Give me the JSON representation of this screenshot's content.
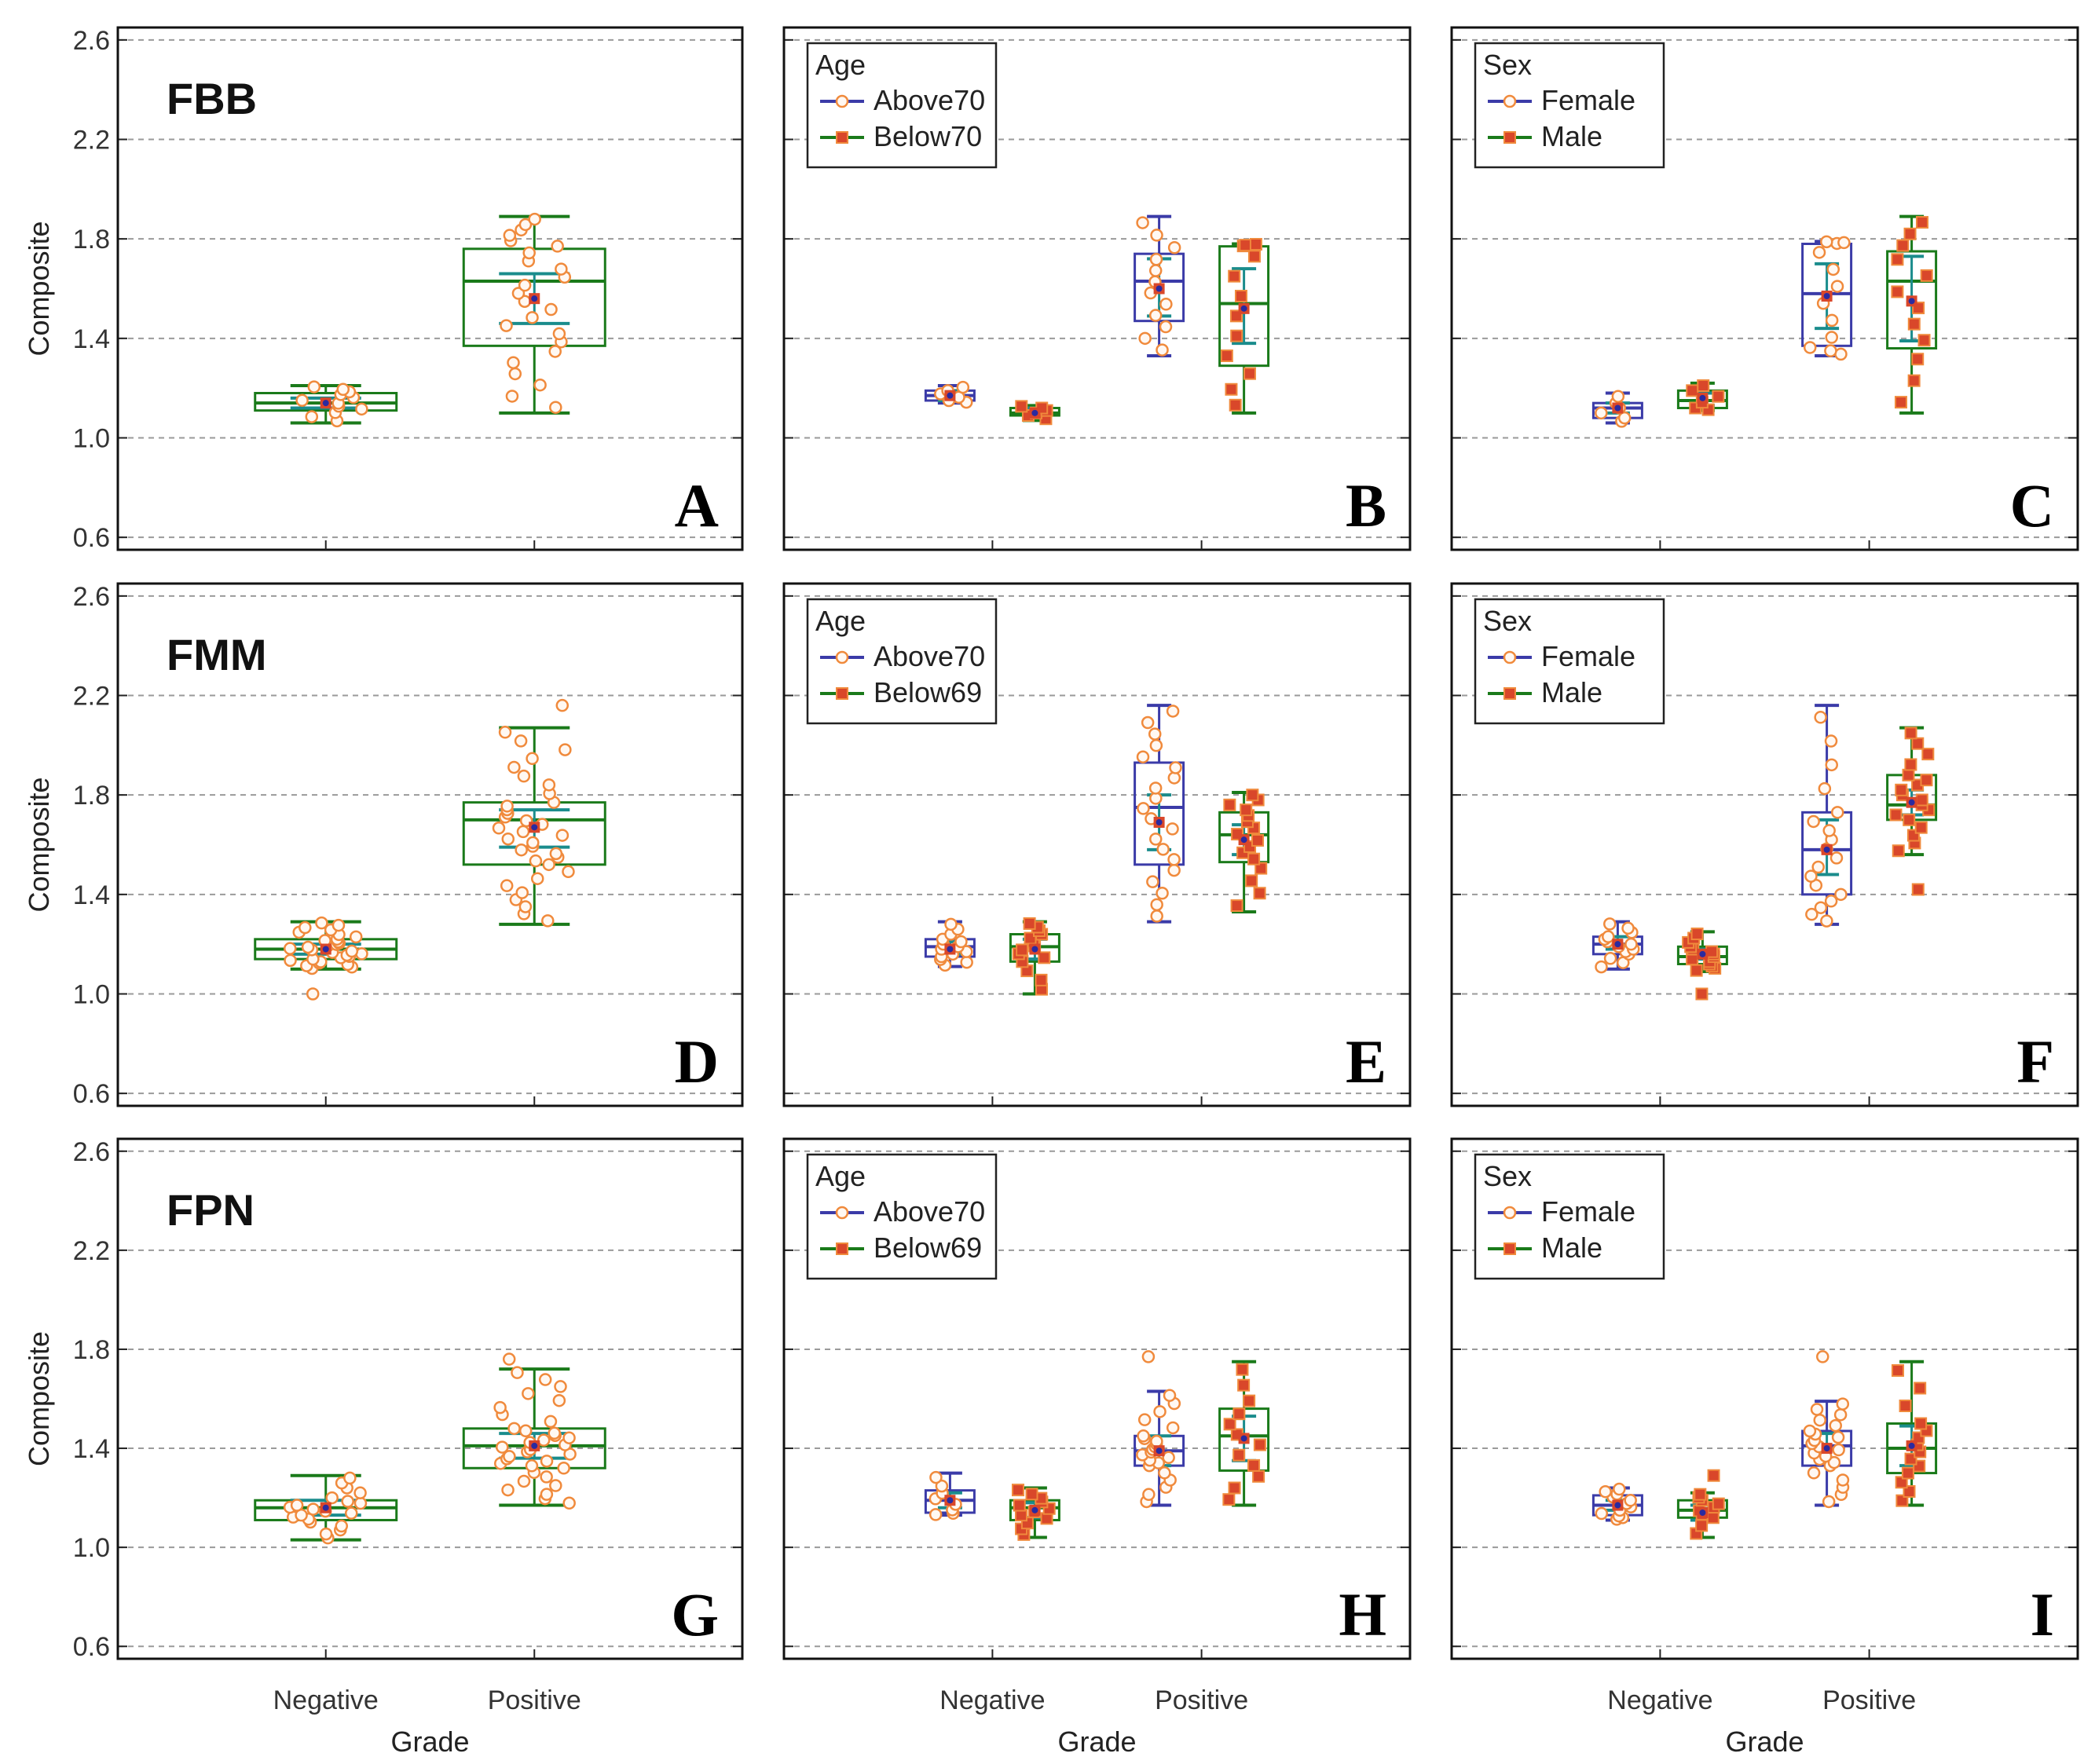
{
  "figure": {
    "y_axis_label": "Composite",
    "x_axis_label": "Grade",
    "categories": [
      "Negative",
      "Positive"
    ],
    "y_ticks": [
      "0.6",
      "1.0",
      "1.4",
      "1.8",
      "2.2",
      "2.6"
    ],
    "colors": {
      "blue_box": "#3b3ba8",
      "green_box": "#1a7a1a",
      "teal_ci": "#1a8c8c",
      "orange_point": "#f08a3c",
      "red_point": "#d9472a",
      "mean_marker": "#2a2aa0",
      "grid": "#9a9a9a"
    }
  },
  "chart_data": [
    {
      "panel": "A",
      "title": "FBB",
      "type": "box",
      "grouped": false,
      "ylim": [
        0.55,
        2.65
      ],
      "categories": [
        "Negative",
        "Positive"
      ],
      "boxes": [
        {
          "cat": 0,
          "style": "green",
          "wl": 1.06,
          "q1": 1.11,
          "med": 1.14,
          "q3": 1.18,
          "wh": 1.21,
          "mean": 1.14,
          "ci": [
            1.12,
            1.16
          ],
          "n": 12,
          "marker": "open"
        },
        {
          "cat": 1,
          "style": "green",
          "wl": 1.1,
          "q1": 1.37,
          "med": 1.63,
          "q3": 1.76,
          "wh": 1.89,
          "mean": 1.56,
          "ci": [
            1.46,
            1.66
          ],
          "n": 24,
          "marker": "open"
        }
      ]
    },
    {
      "panel": "B",
      "title": "",
      "type": "box",
      "grouped": true,
      "ylim": [
        0.55,
        2.65
      ],
      "categories": [
        "Negative",
        "Positive"
      ],
      "legend": {
        "title": "Age",
        "items": [
          "Above70",
          "Below70"
        ]
      },
      "boxes": [
        {
          "cat": 0,
          "group": 0,
          "style": "blue",
          "wl": 1.14,
          "q1": 1.15,
          "med": 1.17,
          "q3": 1.19,
          "wh": 1.21,
          "mean": 1.17,
          "ci": [
            1.15,
            1.19
          ],
          "n": 6,
          "marker": "open"
        },
        {
          "cat": 0,
          "group": 1,
          "style": "green",
          "wl": 1.07,
          "q1": 1.09,
          "med": 1.1,
          "q3": 1.12,
          "wh": 1.13,
          "mean": 1.1,
          "ci": [
            1.09,
            1.12
          ],
          "n": 6,
          "marker": "filled"
        },
        {
          "cat": 1,
          "group": 0,
          "style": "blue",
          "wl": 1.33,
          "q1": 1.47,
          "med": 1.63,
          "q3": 1.74,
          "wh": 1.89,
          "mean": 1.6,
          "ci": [
            1.49,
            1.72
          ],
          "n": 12,
          "marker": "open"
        },
        {
          "cat": 1,
          "group": 1,
          "style": "green",
          "wl": 1.1,
          "q1": 1.29,
          "med": 1.54,
          "q3": 1.77,
          "wh": 1.78,
          "mean": 1.52,
          "ci": [
            1.38,
            1.68
          ],
          "n": 12,
          "marker": "filled"
        }
      ]
    },
    {
      "panel": "C",
      "title": "",
      "type": "box",
      "grouped": true,
      "ylim": [
        0.55,
        2.65
      ],
      "categories": [
        "Negative",
        "Positive"
      ],
      "legend": {
        "title": "Sex",
        "items": [
          "Female",
          "Male"
        ]
      },
      "boxes": [
        {
          "cat": 0,
          "group": 0,
          "style": "blue",
          "wl": 1.06,
          "q1": 1.08,
          "med": 1.12,
          "q3": 1.14,
          "wh": 1.18,
          "mean": 1.12,
          "ci": [
            1.1,
            1.14
          ],
          "n": 6,
          "marker": "open"
        },
        {
          "cat": 0,
          "group": 1,
          "style": "green",
          "wl": 1.11,
          "q1": 1.12,
          "med": 1.15,
          "q3": 1.19,
          "wh": 1.22,
          "mean": 1.16,
          "ci": [
            1.13,
            1.18
          ],
          "n": 6,
          "marker": "filled"
        },
        {
          "cat": 1,
          "group": 0,
          "style": "blue",
          "wl": 1.33,
          "q1": 1.37,
          "med": 1.58,
          "q3": 1.78,
          "wh": 1.79,
          "mean": 1.57,
          "ci": [
            1.44,
            1.7
          ],
          "n": 12,
          "marker": "open"
        },
        {
          "cat": 1,
          "group": 1,
          "style": "green",
          "wl": 1.1,
          "q1": 1.36,
          "med": 1.63,
          "q3": 1.75,
          "wh": 1.89,
          "mean": 1.55,
          "ci": [
            1.39,
            1.73
          ],
          "n": 12,
          "marker": "filled"
        }
      ]
    },
    {
      "panel": "D",
      "title": "FMM",
      "type": "box",
      "grouped": false,
      "ylim": [
        0.55,
        2.65
      ],
      "categories": [
        "Negative",
        "Positive"
      ],
      "boxes": [
        {
          "cat": 0,
          "style": "green",
          "wl": 1.1,
          "q1": 1.14,
          "med": 1.18,
          "q3": 1.22,
          "wh": 1.29,
          "mean": 1.18,
          "ci": [
            1.16,
            1.2
          ],
          "n": 30,
          "marker": "open",
          "extra": [
            1.0
          ]
        },
        {
          "cat": 1,
          "style": "green",
          "wl": 1.28,
          "q1": 1.52,
          "med": 1.7,
          "q3": 1.77,
          "wh": 2.07,
          "mean": 1.67,
          "ci": [
            1.59,
            1.74
          ],
          "n": 34,
          "marker": "open",
          "extra": [
            2.16
          ]
        }
      ]
    },
    {
      "panel": "E",
      "title": "",
      "type": "box",
      "grouped": true,
      "ylim": [
        0.55,
        2.65
      ],
      "categories": [
        "Negative",
        "Positive"
      ],
      "legend": {
        "title": "Age",
        "items": [
          "Above70",
          "Below69"
        ]
      },
      "boxes": [
        {
          "cat": 0,
          "group": 0,
          "style": "blue",
          "wl": 1.11,
          "q1": 1.15,
          "med": 1.19,
          "q3": 1.22,
          "wh": 1.29,
          "mean": 1.18,
          "ci": [
            1.16,
            1.21
          ],
          "n": 14,
          "marker": "open"
        },
        {
          "cat": 0,
          "group": 1,
          "style": "green",
          "wl": 1.0,
          "q1": 1.13,
          "med": 1.19,
          "q3": 1.24,
          "wh": 1.29,
          "mean": 1.18,
          "ci": [
            1.14,
            1.22
          ],
          "n": 14,
          "marker": "filled"
        },
        {
          "cat": 1,
          "group": 0,
          "style": "blue",
          "wl": 1.29,
          "q1": 1.52,
          "med": 1.75,
          "q3": 1.93,
          "wh": 2.16,
          "mean": 1.69,
          "ci": [
            1.58,
            1.8
          ],
          "n": 20,
          "marker": "open"
        },
        {
          "cat": 1,
          "group": 1,
          "style": "green",
          "wl": 1.33,
          "q1": 1.53,
          "med": 1.64,
          "q3": 1.73,
          "wh": 1.81,
          "mean": 1.62,
          "ci": [
            1.56,
            1.68
          ],
          "n": 16,
          "marker": "filled"
        }
      ]
    },
    {
      "panel": "F",
      "title": "",
      "type": "box",
      "grouped": true,
      "ylim": [
        0.55,
        2.65
      ],
      "categories": [
        "Negative",
        "Positive"
      ],
      "legend": {
        "title": "Sex",
        "items": [
          "Female",
          "Male"
        ]
      },
      "boxes": [
        {
          "cat": 0,
          "group": 0,
          "style": "blue",
          "wl": 1.1,
          "q1": 1.16,
          "med": 1.2,
          "q3": 1.23,
          "wh": 1.29,
          "mean": 1.2,
          "ci": [
            1.18,
            1.23
          ],
          "n": 14,
          "marker": "open"
        },
        {
          "cat": 0,
          "group": 1,
          "style": "green",
          "wl": 1.09,
          "q1": 1.12,
          "med": 1.15,
          "q3": 1.19,
          "wh": 1.25,
          "mean": 1.16,
          "ci": [
            1.14,
            1.18
          ],
          "n": 14,
          "marker": "filled",
          "extra": [
            1.0
          ]
        },
        {
          "cat": 1,
          "group": 0,
          "style": "blue",
          "wl": 1.28,
          "q1": 1.4,
          "med": 1.58,
          "q3": 1.73,
          "wh": 2.16,
          "mean": 1.58,
          "ci": [
            1.48,
            1.7
          ],
          "n": 18,
          "marker": "open"
        },
        {
          "cat": 1,
          "group": 1,
          "style": "green",
          "wl": 1.56,
          "q1": 1.7,
          "med": 1.76,
          "q3": 1.88,
          "wh": 2.07,
          "mean": 1.77,
          "ci": [
            1.72,
            1.82
          ],
          "n": 18,
          "marker": "filled",
          "extra": [
            1.42
          ]
        }
      ]
    },
    {
      "panel": "G",
      "title": "FPN",
      "type": "box",
      "grouped": false,
      "ylim": [
        0.55,
        2.65
      ],
      "categories": [
        "Negative",
        "Positive"
      ],
      "boxes": [
        {
          "cat": 0,
          "style": "green",
          "wl": 1.03,
          "q1": 1.11,
          "med": 1.16,
          "q3": 1.19,
          "wh": 1.29,
          "mean": 1.16,
          "ci": [
            1.13,
            1.19
          ],
          "n": 20,
          "marker": "open"
        },
        {
          "cat": 1,
          "style": "green",
          "wl": 1.17,
          "q1": 1.32,
          "med": 1.41,
          "q3": 1.48,
          "wh": 1.72,
          "mean": 1.41,
          "ci": [
            1.36,
            1.46
          ],
          "n": 34,
          "marker": "open",
          "extra": [
            1.76
          ]
        }
      ]
    },
    {
      "panel": "H",
      "title": "",
      "type": "box",
      "grouped": true,
      "ylim": [
        0.55,
        2.65
      ],
      "categories": [
        "Negative",
        "Positive"
      ],
      "legend": {
        "title": "Age",
        "items": [
          "Above70",
          "Below69"
        ]
      },
      "boxes": [
        {
          "cat": 0,
          "group": 0,
          "style": "blue",
          "wl": 1.13,
          "q1": 1.14,
          "med": 1.19,
          "q3": 1.23,
          "wh": 1.3,
          "mean": 1.19,
          "ci": [
            1.16,
            1.22
          ],
          "n": 8,
          "marker": "open"
        },
        {
          "cat": 0,
          "group": 1,
          "style": "green",
          "wl": 1.04,
          "q1": 1.11,
          "med": 1.16,
          "q3": 1.19,
          "wh": 1.24,
          "mean": 1.15,
          "ci": [
            1.12,
            1.18
          ],
          "n": 12,
          "marker": "filled"
        },
        {
          "cat": 1,
          "group": 0,
          "style": "blue",
          "wl": 1.17,
          "q1": 1.33,
          "med": 1.39,
          "q3": 1.45,
          "wh": 1.63,
          "mean": 1.39,
          "ci": [
            1.33,
            1.45
          ],
          "n": 22,
          "marker": "open",
          "extra": [
            1.77
          ]
        },
        {
          "cat": 1,
          "group": 1,
          "style": "green",
          "wl": 1.17,
          "q1": 1.31,
          "med": 1.45,
          "q3": 1.56,
          "wh": 1.75,
          "mean": 1.44,
          "ci": [
            1.35,
            1.53
          ],
          "n": 12,
          "marker": "filled"
        }
      ]
    },
    {
      "panel": "I",
      "title": "",
      "type": "box",
      "grouped": true,
      "ylim": [
        0.55,
        2.65
      ],
      "categories": [
        "Negative",
        "Positive"
      ],
      "legend": {
        "title": "Sex",
        "items": [
          "Female",
          "Male"
        ]
      },
      "boxes": [
        {
          "cat": 0,
          "group": 0,
          "style": "blue",
          "wl": 1.11,
          "q1": 1.13,
          "med": 1.17,
          "q3": 1.21,
          "wh": 1.24,
          "mean": 1.17,
          "ci": [
            1.15,
            1.19
          ],
          "n": 12,
          "marker": "open"
        },
        {
          "cat": 0,
          "group": 1,
          "style": "green",
          "wl": 1.04,
          "q1": 1.12,
          "med": 1.15,
          "q3": 1.19,
          "wh": 1.22,
          "mean": 1.14,
          "ci": [
            1.11,
            1.17
          ],
          "n": 10,
          "marker": "filled",
          "extra": [
            1.29
          ]
        },
        {
          "cat": 1,
          "group": 0,
          "style": "blue",
          "wl": 1.17,
          "q1": 1.33,
          "med": 1.41,
          "q3": 1.47,
          "wh": 1.59,
          "mean": 1.4,
          "ci": [
            1.35,
            1.46
          ],
          "n": 22,
          "marker": "open",
          "extra": [
            1.77
          ]
        },
        {
          "cat": 1,
          "group": 1,
          "style": "green",
          "wl": 1.17,
          "q1": 1.3,
          "med": 1.4,
          "q3": 1.5,
          "wh": 1.75,
          "mean": 1.41,
          "ci": [
            1.33,
            1.49
          ],
          "n": 14,
          "marker": "filled"
        }
      ]
    }
  ]
}
